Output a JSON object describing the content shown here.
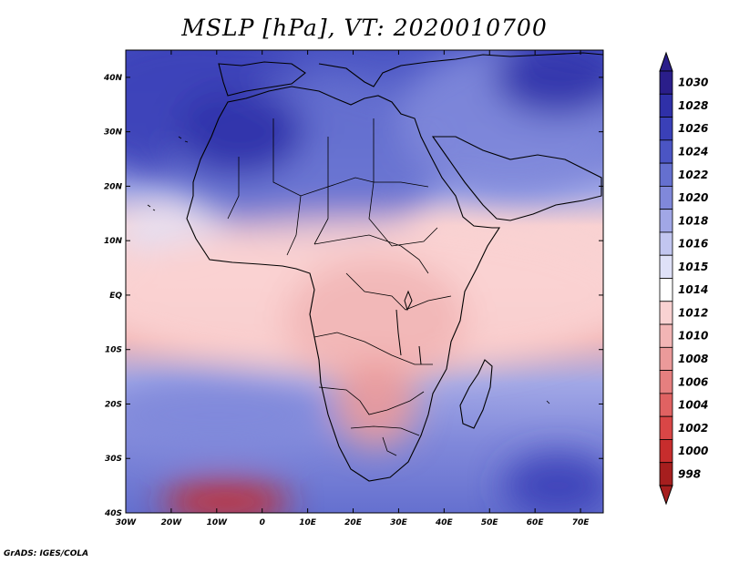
{
  "title": "MSLP [hPa], VT: 2020010700",
  "credit": "GrADS: IGES/COLA",
  "map": {
    "lat_range": [
      -40,
      45
    ],
    "lon_range": [
      -30,
      75
    ],
    "x_ticks": [
      {
        "lon": -30,
        "label": "30W"
      },
      {
        "lon": -20,
        "label": "20W"
      },
      {
        "lon": -10,
        "label": "10W"
      },
      {
        "lon": 0,
        "label": "0"
      },
      {
        "lon": 10,
        "label": "10E"
      },
      {
        "lon": 20,
        "label": "20E"
      },
      {
        "lon": 30,
        "label": "30E"
      },
      {
        "lon": 40,
        "label": "40E"
      },
      {
        "lon": 50,
        "label": "50E"
      },
      {
        "lon": 60,
        "label": "60E"
      },
      {
        "lon": 70,
        "label": "70E"
      }
    ],
    "y_ticks": [
      {
        "lat": 40,
        "label": "40N"
      },
      {
        "lat": 30,
        "label": "30N"
      },
      {
        "lat": 20,
        "label": "20N"
      },
      {
        "lat": 10,
        "label": "10N"
      },
      {
        "lat": 0,
        "label": "EQ"
      },
      {
        "lat": -10,
        "label": "10S"
      },
      {
        "lat": -20,
        "label": "20S"
      },
      {
        "lat": -30,
        "label": "30S"
      },
      {
        "lat": -40,
        "label": "40S"
      }
    ]
  },
  "colorbar": {
    "levels": [
      {
        "label": "1030",
        "color": "#2a1e8a"
      },
      {
        "label": "1028",
        "color": "#2f30a8"
      },
      {
        "label": "1026",
        "color": "#3a40b8"
      },
      {
        "label": "1024",
        "color": "#4b55c4"
      },
      {
        "label": "1022",
        "color": "#6570cf"
      },
      {
        "label": "1020",
        "color": "#8088da"
      },
      {
        "label": "1018",
        "color": "#a1a7e6"
      },
      {
        "label": "1016",
        "color": "#c2c6f0"
      },
      {
        "label": "1015",
        "color": "#dfe1f8"
      },
      {
        "label": "1014",
        "color": "#ffffff"
      },
      {
        "label": "1012",
        "color": "#f9d2d2"
      },
      {
        "label": "1010",
        "color": "#f2b5b5"
      },
      {
        "label": "1008",
        "color": "#eb9a9a"
      },
      {
        "label": "1006",
        "color": "#e67f7f"
      },
      {
        "label": "1004",
        "color": "#e06262"
      },
      {
        "label": "1002",
        "color": "#d94646"
      },
      {
        "label": "1000",
        "color": "#c72d2d"
      },
      {
        "label": "998",
        "color": "#a61e1e"
      }
    ]
  },
  "blobs": [
    {
      "lon": -15,
      "lat": 35,
      "rx": 28,
      "ry": 14,
      "color": "#3a40b8"
    },
    {
      "lon": 10,
      "lat": 25,
      "rx": 30,
      "ry": 15,
      "color": "#6570cf"
    },
    {
      "lon": -5,
      "lat": 30,
      "rx": 14,
      "ry": 8,
      "color": "#2f30a8"
    },
    {
      "lon": 55,
      "lat": 32,
      "rx": 25,
      "ry": 14,
      "color": "#8088da"
    },
    {
      "lon": 65,
      "lat": 40,
      "rx": 14,
      "ry": 7,
      "color": "#2f30a8"
    },
    {
      "lon": -20,
      "lat": 12,
      "rx": 12,
      "ry": 4,
      "color": "#dfe1f8"
    },
    {
      "lon": 22,
      "lat": 0,
      "rx": 60,
      "ry": 14,
      "color": "#f9d2d2"
    },
    {
      "lon": 25,
      "lat": -5,
      "rx": 20,
      "ry": 12,
      "color": "#f2b5b5"
    },
    {
      "lon": 25,
      "lat": -20,
      "rx": 9,
      "ry": 8,
      "color": "#eb9a9a"
    },
    {
      "lon": -10,
      "lat": -22,
      "rx": 25,
      "ry": 7,
      "color": "#8088da"
    },
    {
      "lon": -8,
      "lat": -38,
      "rx": 14,
      "ry": 4,
      "color": "#c72d2d"
    },
    {
      "lon": 65,
      "lat": -35,
      "rx": 12,
      "ry": 6,
      "color": "#3a40b8"
    }
  ]
}
